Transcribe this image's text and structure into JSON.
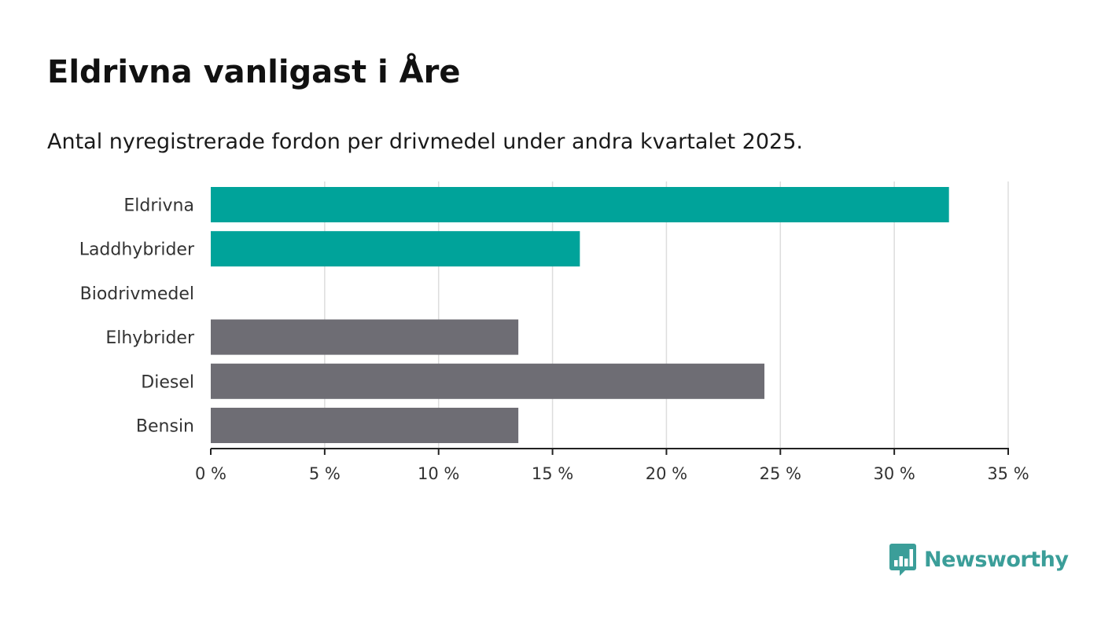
{
  "colors": {
    "highlight": "#00A39A",
    "neutral": "#6E6D74",
    "grid": "#DDDDDD",
    "axis": "#222222",
    "brand": "#3B9E99"
  },
  "brand": {
    "name": "Newsworthy",
    "icon": "newsworthy-chart-bubble-icon"
  },
  "chart_data": {
    "type": "bar",
    "orientation": "horizontal",
    "title": "Eldrivna vanligast i Åre",
    "subtitle": "Antal nyregistrerade fordon per drivmedel under andra kvartalet 2025.",
    "categories": [
      "Eldrivna",
      "Laddhybrider",
      "Biodrivmedel",
      "Elhybrider",
      "Diesel",
      "Bensin"
    ],
    "values": [
      32.4,
      16.2,
      0,
      13.5,
      24.3,
      13.5
    ],
    "highlighted": [
      true,
      true,
      false,
      false,
      false,
      false
    ],
    "xlim": [
      0,
      35
    ],
    "ticks": [
      0,
      5,
      10,
      15,
      20,
      25,
      30,
      35
    ],
    "tick_labels": [
      "0 %",
      "5 %",
      "10 %",
      "15 %",
      "20 %",
      "25 %",
      "30 %",
      "35 %"
    ],
    "grid": true,
    "legend": "none"
  }
}
